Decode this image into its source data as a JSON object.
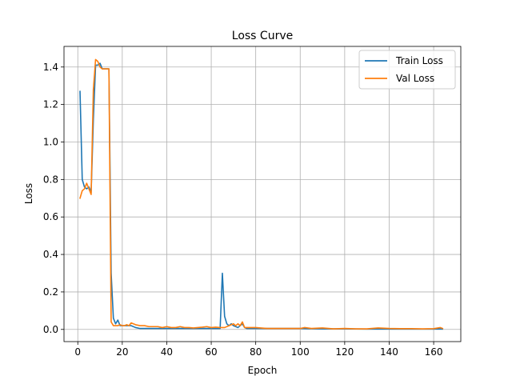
{
  "chart_data": {
    "type": "line",
    "title": "Loss Curve",
    "xlabel": "Epoch",
    "ylabel": "Loss",
    "xlim": [
      -6.2,
      172.2
    ],
    "ylim": [
      -0.065,
      1.51
    ],
    "xticks": [
      0,
      20,
      40,
      60,
      80,
      100,
      120,
      140,
      160
    ],
    "yticks": [
      0.0,
      0.2,
      0.4,
      0.6,
      0.8,
      1.0,
      1.2,
      1.4
    ],
    "ytick_labels": [
      "0.0",
      "0.2",
      "0.4",
      "0.6",
      "0.8",
      "1.0",
      "1.2",
      "1.4"
    ],
    "grid": true,
    "legend_position": "upper right",
    "series": [
      {
        "name": "Train Loss",
        "color": "#1f77b4",
        "points": [
          [
            1,
            1.27
          ],
          [
            2,
            0.8
          ],
          [
            3,
            0.76
          ],
          [
            4,
            0.75
          ],
          [
            5,
            0.76
          ],
          [
            6,
            0.73
          ],
          [
            7,
            1.12
          ],
          [
            8,
            1.41
          ],
          [
            9,
            1.41
          ],
          [
            10,
            1.42
          ],
          [
            11,
            1.39
          ],
          [
            12,
            1.39
          ],
          [
            13,
            1.39
          ],
          [
            14,
            1.39
          ],
          [
            15,
            0.3
          ],
          [
            16,
            0.06
          ],
          [
            17,
            0.03
          ],
          [
            18,
            0.05
          ],
          [
            19,
            0.02
          ],
          [
            20,
            0.02
          ],
          [
            22,
            0.02
          ],
          [
            24,
            0.02
          ],
          [
            26,
            0.01
          ],
          [
            28,
            0.005
          ],
          [
            30,
            0.005
          ],
          [
            35,
            0.005
          ],
          [
            40,
            0.005
          ],
          [
            45,
            0.005
          ],
          [
            50,
            0.005
          ],
          [
            55,
            0.005
          ],
          [
            60,
            0.005
          ],
          [
            63,
            0.005
          ],
          [
            64,
            0.005
          ],
          [
            65,
            0.3
          ],
          [
            66,
            0.07
          ],
          [
            67,
            0.03
          ],
          [
            68,
            0.02
          ],
          [
            69,
            0.03
          ],
          [
            70,
            0.02
          ],
          [
            72,
            0.01
          ],
          [
            74,
            0.03
          ],
          [
            75,
            0.01
          ],
          [
            76,
            0.005
          ],
          [
            80,
            0.005
          ],
          [
            90,
            0.005
          ],
          [
            100,
            0.005
          ],
          [
            110,
            0.003
          ],
          [
            120,
            0.003
          ],
          [
            130,
            0.002
          ],
          [
            140,
            0.002
          ],
          [
            150,
            0.002
          ],
          [
            160,
            0.002
          ],
          [
            164,
            0.002
          ]
        ]
      },
      {
        "name": "Val Loss",
        "color": "#ff7f0e",
        "points": [
          [
            1,
            0.7
          ],
          [
            2,
            0.74
          ],
          [
            3,
            0.75
          ],
          [
            4,
            0.78
          ],
          [
            5,
            0.75
          ],
          [
            6,
            0.72
          ],
          [
            7,
            1.28
          ],
          [
            8,
            1.44
          ],
          [
            9,
            1.43
          ],
          [
            10,
            1.4
          ],
          [
            11,
            1.39
          ],
          [
            12,
            1.39
          ],
          [
            13,
            1.39
          ],
          [
            14,
            1.39
          ],
          [
            15,
            0.04
          ],
          [
            16,
            0.02
          ],
          [
            17,
            0.02
          ],
          [
            18,
            0.02
          ],
          [
            19,
            0.025
          ],
          [
            20,
            0.02
          ],
          [
            21,
            0.02
          ],
          [
            22,
            0.025
          ],
          [
            23,
            0.02
          ],
          [
            24,
            0.035
          ],
          [
            25,
            0.03
          ],
          [
            26,
            0.025
          ],
          [
            28,
            0.02
          ],
          [
            30,
            0.02
          ],
          [
            32,
            0.015
          ],
          [
            34,
            0.015
          ],
          [
            36,
            0.015
          ],
          [
            38,
            0.01
          ],
          [
            40,
            0.015
          ],
          [
            42,
            0.01
          ],
          [
            44,
            0.01
          ],
          [
            46,
            0.015
          ],
          [
            48,
            0.01
          ],
          [
            50,
            0.01
          ],
          [
            52,
            0.008
          ],
          [
            54,
            0.01
          ],
          [
            56,
            0.012
          ],
          [
            58,
            0.015
          ],
          [
            60,
            0.01
          ],
          [
            62,
            0.012
          ],
          [
            64,
            0.01
          ],
          [
            66,
            0.01
          ],
          [
            68,
            0.02
          ],
          [
            70,
            0.03
          ],
          [
            71,
            0.02
          ],
          [
            72,
            0.03
          ],
          [
            73,
            0.02
          ],
          [
            74,
            0.04
          ],
          [
            75,
            0.01
          ],
          [
            76,
            0.01
          ],
          [
            80,
            0.01
          ],
          [
            85,
            0.005
          ],
          [
            90,
            0.005
          ],
          [
            95,
            0.005
          ],
          [
            100,
            0.005
          ],
          [
            102,
            0.01
          ],
          [
            105,
            0.005
          ],
          [
            110,
            0.008
          ],
          [
            115,
            0.003
          ],
          [
            120,
            0.005
          ],
          [
            125,
            0.003
          ],
          [
            130,
            0.003
          ],
          [
            135,
            0.008
          ],
          [
            140,
            0.005
          ],
          [
            145,
            0.004
          ],
          [
            150,
            0.004
          ],
          [
            155,
            0.003
          ],
          [
            160,
            0.004
          ],
          [
            163,
            0.01
          ],
          [
            164,
            0.005
          ]
        ]
      }
    ]
  }
}
